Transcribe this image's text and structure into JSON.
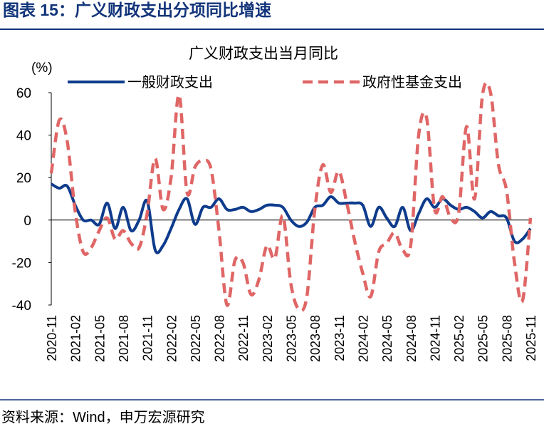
{
  "heading": "图表 15：广义财政支出分项同比增速",
  "source": "资料来源：Wind，申万宏源研究",
  "chart_data": {
    "type": "line",
    "title": "广义财政支出当月同比",
    "y_label": "(%)",
    "categories": [
      "2020-11",
      null,
      null,
      "2021-02",
      null,
      null,
      "2021-05",
      null,
      null,
      "2021-08",
      null,
      null,
      "2021-11",
      null,
      null,
      "2022-02",
      null,
      null,
      "2022-05",
      null,
      null,
      "2022-08",
      null,
      null,
      "2022-11",
      null,
      null,
      "2023-02",
      null,
      null,
      "2023-05",
      null,
      null,
      "2023-08",
      null,
      null,
      "2023-11",
      null,
      null,
      "2024-02",
      null,
      null,
      "2024-05",
      null,
      null,
      "2024-08",
      null,
      null,
      "2024-11",
      null,
      null,
      "2025-02",
      null,
      null,
      "2025-05",
      null,
      null,
      "2025-08",
      null,
      null,
      "2025-11"
    ],
    "series": [
      {
        "name": "一般财政支出",
        "color": "#0e3b8c",
        "dash": false,
        "values": [
          17,
          15,
          16,
          7,
          0,
          0,
          -2,
          8,
          -4,
          6,
          -5,
          0,
          9,
          -14,
          -12,
          -4,
          5,
          10,
          -2,
          6,
          6,
          10,
          5,
          5,
          6,
          4,
          5,
          7,
          7,
          6,
          0,
          -3,
          -1,
          6,
          7,
          11,
          8,
          8,
          8,
          7,
          -3,
          6,
          1,
          -3,
          6,
          -5,
          3,
          10,
          6,
          10,
          7,
          5,
          6,
          4,
          1,
          4,
          2,
          1,
          -10,
          -9,
          -4
        ]
      },
      {
        "name": "政府性基金支出",
        "color": "#e06666",
        "dash": true,
        "values": [
          22,
          47,
          37,
          4,
          -15,
          -13,
          -5,
          1,
          -9,
          -5,
          -11,
          -13,
          3,
          29,
          5,
          20,
          59,
          13,
          25,
          28,
          24,
          -5,
          -40,
          -19,
          -20,
          -35,
          -28,
          -12,
          -18,
          2,
          -30,
          -42,
          -36,
          5,
          26,
          13,
          23,
          8,
          -10,
          -25,
          -36,
          -15,
          -11,
          -6,
          -14,
          -12,
          40,
          48,
          5,
          11,
          1,
          3,
          44,
          10,
          59,
          60,
          26,
          14,
          -20,
          -38,
          1
        ]
      }
    ],
    "ylim": [
      -40,
      60
    ],
    "yticks": [
      -40,
      -20,
      0,
      20,
      40,
      60
    ],
    "grid": false,
    "legend": "top",
    "smooth": true
  }
}
